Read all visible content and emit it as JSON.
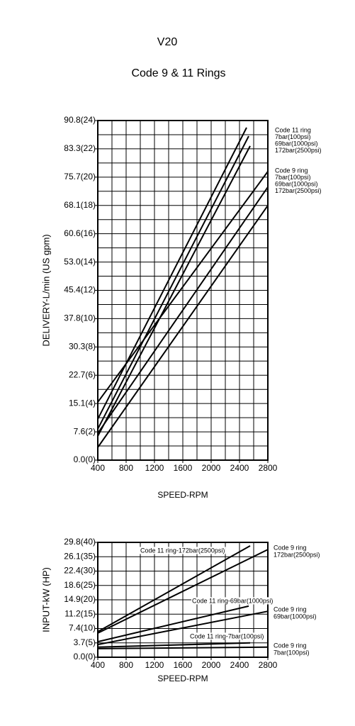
{
  "chart_data": [
    {
      "type": "line",
      "title": "V20",
      "subtitle": "Code 9 & 11 Rings",
      "xlabel": "SPEED-RPM",
      "ylabel": "DELIVERY-L/min (US gpm)",
      "xlim": [
        400,
        2800
      ],
      "xticks": [
        400,
        800,
        1200,
        1600,
        2000,
        2400,
        2800
      ],
      "ylim": [
        0,
        24
      ],
      "yticks": [
        {
          "value": 0,
          "label": "0.0(0)"
        },
        {
          "value": 2,
          "label": "7.6(2)"
        },
        {
          "value": 4,
          "label": "15.1(4)"
        },
        {
          "value": 6,
          "label": "22.7(6)"
        },
        {
          "value": 8,
          "label": "30.3(8)"
        },
        {
          "value": 10,
          "label": "37.8(10)"
        },
        {
          "value": 12,
          "label": "45.4(12)"
        },
        {
          "value": 14,
          "label": "53.0(14)"
        },
        {
          "value": 16,
          "label": "60.6(16)"
        },
        {
          "value": 18,
          "label": "68.1(18)"
        },
        {
          "value": 20,
          "label": "75.7(20)"
        },
        {
          "value": 22,
          "label": "83.3(22)"
        },
        {
          "value": 24,
          "label": "90.8(24)"
        }
      ],
      "grid": true,
      "series_groups": [
        {
          "name": "Code 11 ring",
          "series": [
            {
              "name": "7bar(100psi)",
              "color": "#000000",
              "x": [
                400,
                2500
              ],
              "values": [
                2.9,
                23.5
              ]
            },
            {
              "name": "69bar(1000psi)",
              "color": "#000000",
              "x": [
                400,
                2530
              ],
              "values": [
                2.2,
                22.9
              ]
            },
            {
              "name": "172bar(2500psi)",
              "color": "#000000",
              "x": [
                400,
                2550
              ],
              "values": [
                1.7,
                22.2
              ]
            }
          ]
        },
        {
          "name": "Code 9 ring",
          "series": [
            {
              "name": "7bar(100psi)",
              "color": "#000000",
              "x": [
                400,
                2800
              ],
              "values": [
                4.1,
                20.4
              ]
            },
            {
              "name": "69bar(1000psi)",
              "color": "#000000",
              "x": [
                400,
                2800
              ],
              "values": [
                1.9,
                19.3
              ]
            },
            {
              "name": "172bar(2500psi)",
              "color": "#000000",
              "x": [
                400,
                2800
              ],
              "values": [
                0.9,
                18.0
              ]
            }
          ]
        }
      ]
    },
    {
      "type": "line",
      "xlabel": "SPEED-RPM",
      "ylabel": "INPUT-kW (HP)",
      "xlim": [
        400,
        2800
      ],
      "xticks": [
        400,
        800,
        1200,
        1600,
        2000,
        2400,
        2800
      ],
      "ylim": [
        0,
        40
      ],
      "yticks": [
        {
          "value": 0,
          "label": "0.0(0)"
        },
        {
          "value": 5,
          "label": "3.7(5)"
        },
        {
          "value": 10,
          "label": "7.4(10)"
        },
        {
          "value": 15,
          "label": "11.2(15)"
        },
        {
          "value": 20,
          "label": "14.9(20)"
        },
        {
          "value": 25,
          "label": "18.6(25)"
        },
        {
          "value": 30,
          "label": "22.4(30)"
        },
        {
          "value": 35,
          "label": "26.1(35)"
        },
        {
          "value": 40,
          "label": "29.8(40)"
        }
      ],
      "grid": true,
      "series": [
        {
          "name": "Code 11 ring-172bar(2500psi)",
          "color": "#000000",
          "x": [
            400,
            2550
          ],
          "values": [
            8.9,
            38.8
          ]
        },
        {
          "group": "Code 9 ring",
          "name": "172bar(2500psi)",
          "color": "#000000",
          "x": [
            400,
            2800
          ],
          "values": [
            8.4,
            37.5
          ]
        },
        {
          "name": "Code 11 ring-69bar(1000psi)",
          "color": "#000000",
          "x": [
            400,
            2530
          ],
          "values": [
            5.4,
            17.8
          ]
        },
        {
          "group": "Code 9 ring",
          "name": "69bar(1000psi)",
          "color": "#000000",
          "x": [
            400,
            2800
          ],
          "values": [
            4.4,
            16.0
          ]
        },
        {
          "name": "Code 11 ring-7bar(100psi)",
          "color": "#000000",
          "x": [
            400,
            2550
          ],
          "values": [
            3.5,
            5.0
          ]
        },
        {
          "group": "Code 9 ring",
          "name": "7bar(100psi)",
          "color": "#000000",
          "x": [
            400,
            2800
          ],
          "values": [
            3.0,
            3.5
          ]
        }
      ]
    }
  ]
}
